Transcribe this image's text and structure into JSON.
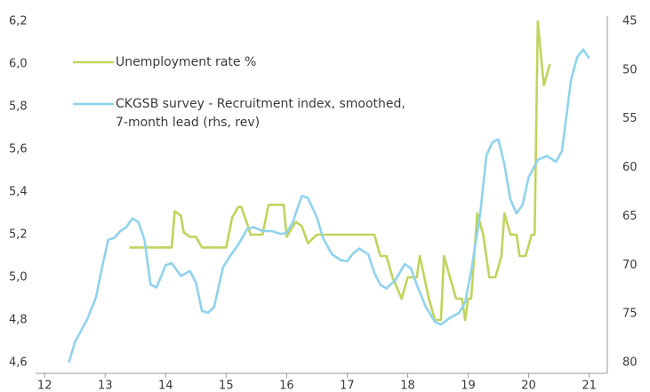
{
  "chart_data": {
    "type": "line",
    "xlim": [
      11.85,
      21.3
    ],
    "xticks": [
      12,
      13,
      14,
      15,
      16,
      17,
      18,
      19,
      20,
      21
    ],
    "ylim": [
      4.6,
      6.2
    ],
    "yticks": [
      {
        "value": 4.6,
        "label": "4,6"
      },
      {
        "value": 4.8,
        "label": "4,8"
      },
      {
        "value": 5.0,
        "label": "5,0"
      },
      {
        "value": 5.2,
        "label": "5,2"
      },
      {
        "value": 5.4,
        "label": "5,4"
      },
      {
        "value": 5.6,
        "label": "5,6"
      },
      {
        "value": 5.8,
        "label": "5,8"
      },
      {
        "value": 6.0,
        "label": "6,0"
      },
      {
        "value": 6.2,
        "label": "6,2"
      }
    ],
    "y2lim": [
      80,
      45
    ],
    "y2ticks": [
      45,
      50,
      55,
      60,
      65,
      70,
      75,
      80
    ],
    "y2_inverted": true,
    "grid": false,
    "series": [
      {
        "name": "Unemployment rate %",
        "color": "#bfd45c",
        "x": [
          13.4,
          14.1,
          14.15,
          14.25,
          14.3,
          14.4,
          14.5,
          14.6,
          15.0,
          15.1,
          15.2,
          15.25,
          15.35,
          15.4,
          15.6,
          15.7,
          15.95,
          16.0,
          16.15,
          16.25,
          16.35,
          16.5,
          17.45,
          17.55,
          17.65,
          17.75,
          17.9,
          18.0,
          18.15,
          18.2,
          18.35,
          18.45,
          18.55,
          18.6,
          18.7,
          18.8,
          18.9,
          18.95,
          19.0,
          19.05,
          19.15,
          19.25,
          19.35,
          19.45,
          19.55,
          19.6,
          19.7,
          19.8,
          19.85,
          19.95,
          20.05,
          20.1,
          20.15,
          20.25,
          20.35
        ],
        "values": [
          5.14,
          5.14,
          5.31,
          5.29,
          5.21,
          5.19,
          5.19,
          5.14,
          5.14,
          5.28,
          5.33,
          5.33,
          5.25,
          5.2,
          5.2,
          5.34,
          5.34,
          5.19,
          5.26,
          5.24,
          5.16,
          5.2,
          5.2,
          5.1,
          5.1,
          5.0,
          4.9,
          5.0,
          5.0,
          5.1,
          4.9,
          4.8,
          4.8,
          5.1,
          5.0,
          4.9,
          4.9,
          4.8,
          4.9,
          4.9,
          5.3,
          5.2,
          5.0,
          5.0,
          5.1,
          5.3,
          5.2,
          5.2,
          5.1,
          5.1,
          5.2,
          5.2,
          6.2,
          5.9,
          6.0
        ]
      },
      {
        "name": "CKGSB survey - Recruitment index, smoothed,\n7-month lead (rhs, rev)",
        "color": "#8fd3ee",
        "axis": "y2",
        "x": [
          12.4,
          12.5,
          12.7,
          12.85,
          12.95,
          13.05,
          13.15,
          13.25,
          13.35,
          13.45,
          13.55,
          13.65,
          13.75,
          13.85,
          14.0,
          14.1,
          14.25,
          14.4,
          14.5,
          14.6,
          14.7,
          14.8,
          14.95,
          15.05,
          15.2,
          15.35,
          15.45,
          15.6,
          15.75,
          15.9,
          16.0,
          16.1,
          16.25,
          16.35,
          16.5,
          16.6,
          16.75,
          16.9,
          17.0,
          17.1,
          17.2,
          17.35,
          17.45,
          17.55,
          17.65,
          17.8,
          17.95,
          18.05,
          18.15,
          18.3,
          18.45,
          18.55,
          18.7,
          18.85,
          18.95,
          19.05,
          19.2,
          19.3,
          19.4,
          19.5,
          19.6,
          19.7,
          19.8,
          19.9,
          20.0,
          20.15,
          20.3,
          20.45,
          20.55,
          20.7,
          20.8,
          20.9,
          21.0
        ],
        "values": [
          80,
          77.9,
          75.6,
          73.3,
          70.2,
          67.4,
          67.2,
          66.5,
          66.1,
          65.2,
          65.6,
          67.4,
          72,
          72.3,
          70,
          69.8,
          71.1,
          70.6,
          71.8,
          74.7,
          74.9,
          74.3,
          70.2,
          69.2,
          67.9,
          66.3,
          66.1,
          66.5,
          66.5,
          66.8,
          66.7,
          65.6,
          62.9,
          63.1,
          65.1,
          67.2,
          68.9,
          69.5,
          69.6,
          68.8,
          68.3,
          68.9,
          70.8,
          72,
          72.4,
          71.5,
          69.9,
          70.3,
          72,
          74.3,
          75.8,
          76.1,
          75.4,
          74.9,
          73.8,
          70.6,
          64.7,
          58.8,
          57.4,
          57.1,
          59.7,
          63.3,
          64.7,
          63.8,
          61,
          59.2,
          58.8,
          59.4,
          58.3,
          51,
          48.7,
          47.9,
          48.8
        ]
      }
    ]
  }
}
